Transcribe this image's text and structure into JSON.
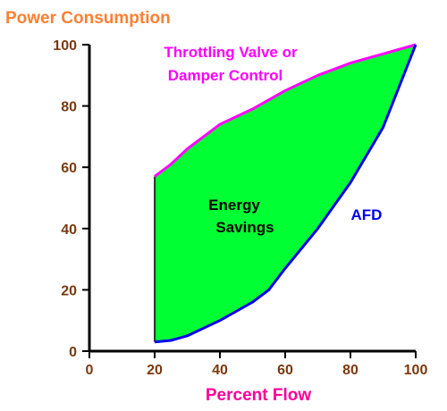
{
  "chart_data": {
    "type": "area",
    "title": "Power Consumption",
    "xlabel": "Percent Flow",
    "ylabel": "",
    "xlim": [
      0,
      100
    ],
    "ylim": [
      0,
      100
    ],
    "x_ticks": [
      "0",
      "20",
      "40",
      "60",
      "80",
      "100"
    ],
    "y_ticks": [
      "0",
      "20",
      "40",
      "60",
      "80",
      "100"
    ],
    "grid": false,
    "series": [
      {
        "name": "Throttling Valve or Damper Control",
        "color": "#ff00ff",
        "x": [
          20,
          25,
          30,
          40,
          50,
          60,
          70,
          80,
          90,
          100
        ],
        "y": [
          57,
          61,
          66,
          74,
          79,
          85,
          90,
          94,
          97,
          100
        ]
      },
      {
        "name": "AFD",
        "color": "#0000ee",
        "x": [
          20,
          25,
          30,
          40,
          50,
          55,
          60,
          70,
          80,
          90,
          100
        ],
        "y": [
          3,
          3.5,
          5,
          10,
          16,
          20,
          27,
          40,
          55,
          73,
          100
        ]
      }
    ],
    "fill": {
      "label": "Energy Savings",
      "color": "#00ff33"
    },
    "annotations": [
      {
        "text": "Energy",
        "color": "#000000"
      },
      {
        "text": "Savings",
        "color": "#000000"
      },
      {
        "text": "Throttling Valve or",
        "color": "#ff00ff"
      },
      {
        "text": "Damper Control",
        "color": "#ff00ff"
      },
      {
        "text": "AFD",
        "color": "#0000ee"
      }
    ],
    "colors": {
      "title": "#ff8033",
      "axis": "#000000",
      "tick_label": "#7a3a10",
      "xlabel": "#ff0099"
    }
  }
}
